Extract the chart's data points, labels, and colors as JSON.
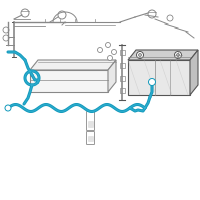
{
  "background_color": "#ffffff",
  "component_color": "#888888",
  "component_light": "#bbbbbb",
  "component_dark": "#555555",
  "highlight_color": "#1199bb",
  "highlight_color2": "#44bbdd",
  "fig_bg": "#ffffff"
}
